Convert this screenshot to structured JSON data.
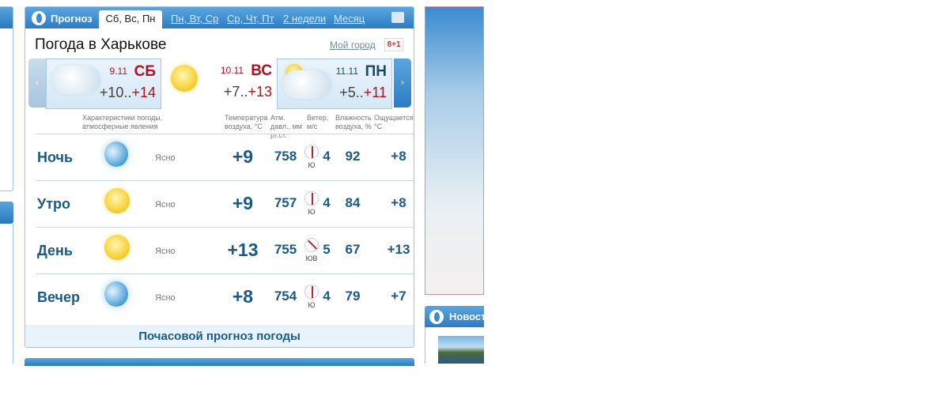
{
  "widget": {
    "brand": "Прогноз",
    "tabs": [
      {
        "label": "Сб, Вс, Пн",
        "active": true
      },
      {
        "label": "Пн, Вт, Ср"
      },
      {
        "label": "Ср, Чт, Пт"
      },
      {
        "label": "2 недели"
      },
      {
        "label": "Месяц"
      }
    ],
    "title": "Погода в Харькове",
    "my_city": "Мой город",
    "gplus": "8+1",
    "days": [
      {
        "date": "9.11",
        "day": "СБ",
        "low": "+10",
        "high": "+14",
        "icon": "cloudy-icon"
      },
      {
        "date": "10.11",
        "day": "ВС",
        "low": "+7",
        "high": "+13",
        "icon": "sun-icon"
      },
      {
        "date": "11.11",
        "day": "ПН",
        "low": "+5",
        "high": "+11",
        "icon": "partly-cloudy-icon"
      }
    ],
    "headers": {
      "conditions": "Характеристики погоды, атмосферные явления",
      "temp": "Температура воздуха, °С",
      "pressure": "Атм. давл., мм рт.ст.",
      "wind": "Ветер, м/с",
      "humidity": "Влажность воздуха, %",
      "feels": "Ощущается, °С"
    },
    "rows": [
      {
        "period": "Ночь",
        "icon": "moon-icon",
        "desc": "Ясно",
        "temp": "+9",
        "pressure": "758",
        "wind_dir": "Ю",
        "wind": "4",
        "humidity": "92",
        "feels": "+8"
      },
      {
        "period": "Утро",
        "icon": "sun-icon",
        "desc": "Ясно",
        "temp": "+9",
        "pressure": "757",
        "wind_dir": "Ю",
        "wind": "4",
        "humidity": "84",
        "feels": "+8"
      },
      {
        "period": "День",
        "icon": "sun-icon",
        "desc": "Ясно",
        "temp": "+13",
        "pressure": "755",
        "wind_dir": "ЮВ",
        "wind": "5",
        "humidity": "67",
        "feels": "+13"
      },
      {
        "period": "Вечер",
        "icon": "moon-icon",
        "desc": "Ясно",
        "temp": "+8",
        "pressure": "754",
        "wind_dir": "Ю",
        "wind": "4",
        "humidity": "79",
        "feels": "+7"
      }
    ],
    "hourly_link": "Почасовой прогноз погоды"
  },
  "news": {
    "title": "Новости"
  },
  "colors": {
    "accent": "#2c7cc4",
    "weekend": "#b01020",
    "value": "#1a5a88"
  }
}
